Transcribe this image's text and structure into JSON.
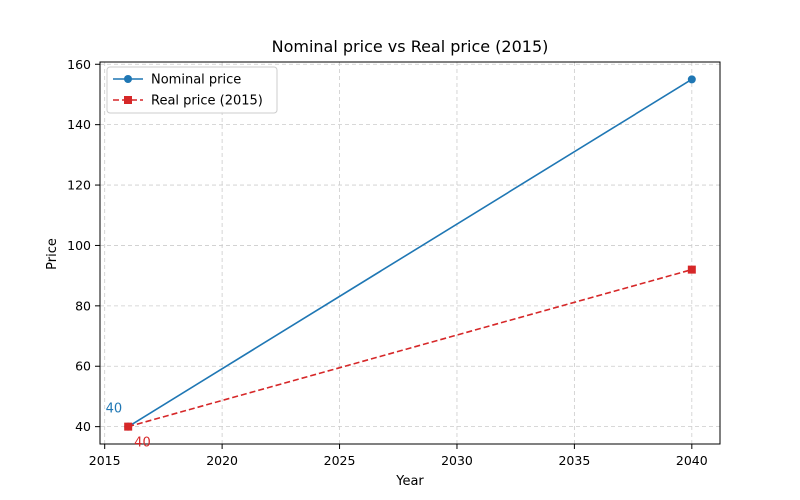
{
  "chart_data": {
    "type": "line",
    "title": "Nominal price vs Real price (2015)",
    "xlabel": "Year",
    "ylabel": "Price",
    "xlim": [
      2014.8,
      2041.2
    ],
    "ylim": [
      34.25,
      160.75
    ],
    "xticks": [
      2015,
      2020,
      2025,
      2030,
      2035,
      2040
    ],
    "yticks": [
      40,
      60,
      80,
      100,
      120,
      140,
      160
    ],
    "grid": true,
    "legend_position": "top-left",
    "series": [
      {
        "name": "Nominal price",
        "color": "#1f77b4",
        "marker": "circle",
        "line_style": "solid",
        "x": [
          2016,
          2040
        ],
        "y": [
          40,
          155
        ]
      },
      {
        "name": "Real price (2015)",
        "color": "#d62728",
        "marker": "square",
        "line_style": "dashed",
        "x": [
          2016,
          2040
        ],
        "y": [
          40,
          92
        ]
      }
    ],
    "annotations": [
      {
        "text": "40",
        "series": 0,
        "x": 2016,
        "y": 40,
        "color": "#1f77b4"
      },
      {
        "text": "40",
        "series": 1,
        "x": 2016,
        "y": 40,
        "color": "#d62728"
      }
    ]
  }
}
